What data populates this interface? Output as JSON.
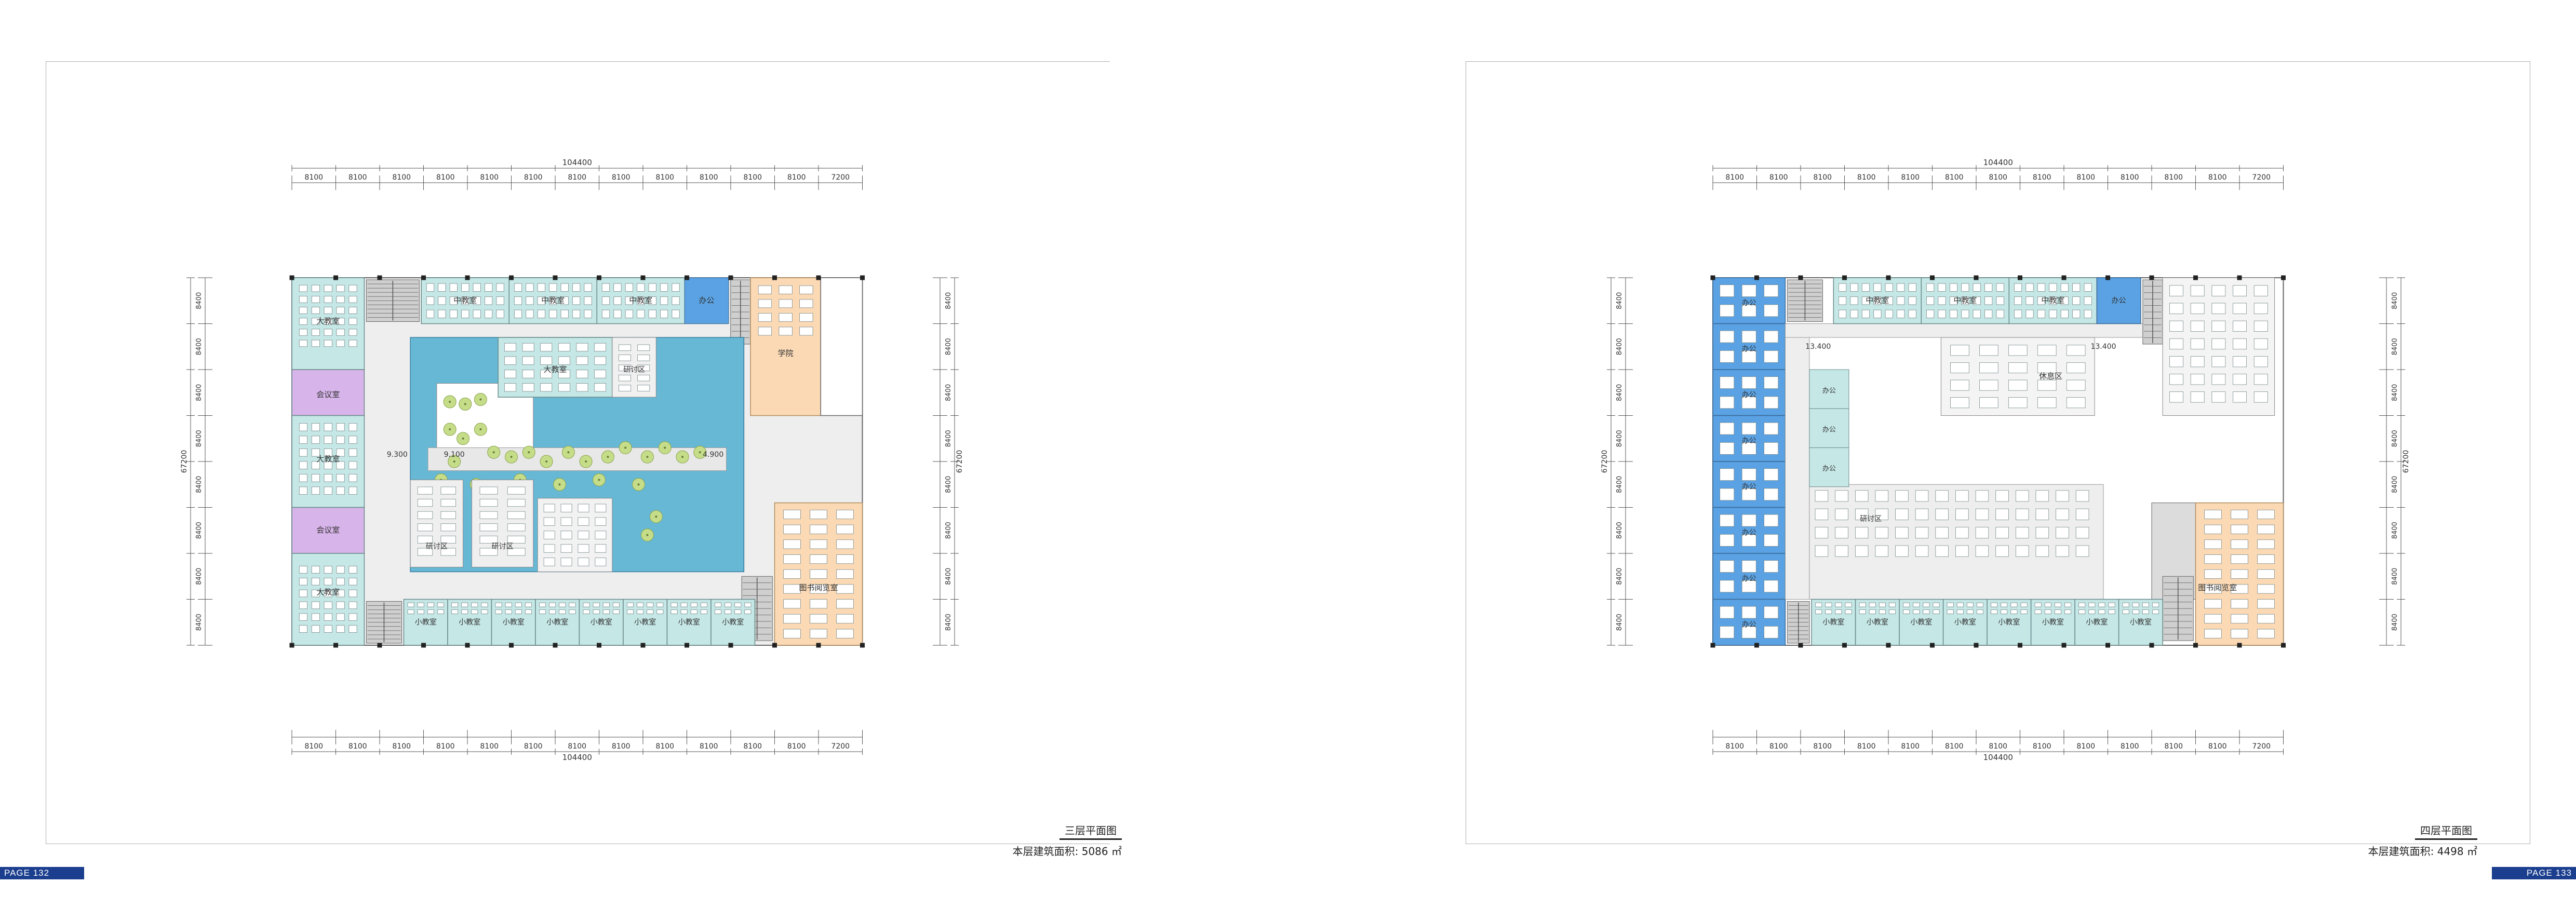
{
  "pages": {
    "left_number": "PAGE  132",
    "right_number": "PAGE  133"
  },
  "colors": {
    "classroom": "#c5e7e6",
    "office": "#5aa2e3",
    "meeting": "#d7b4ea",
    "library": "#fbd9b5",
    "atrium": "#66b8d5",
    "circulation": "#eeeeee",
    "core": "#9d9d9d",
    "tree": "#c5dd88",
    "badge": "#1b3e8f"
  },
  "plan3": {
    "title": "三层平面图",
    "area_label": "本层建筑面积:",
    "area_value": "5086 ㎡",
    "overall_dim": "104400",
    "vertical_overall": "67200",
    "top_dims": [
      "8100",
      "8100",
      "8100",
      "8100",
      "8100",
      "8100",
      "8100",
      "8100",
      "8100",
      "8100",
      "8100",
      "8100",
      "7200"
    ],
    "bottom_dims": [
      "8100",
      "8100",
      "8100",
      "8100",
      "8100",
      "8100",
      "8100",
      "8100",
      "8100",
      "8100",
      "8100",
      "8100",
      "7200"
    ],
    "side_dims": [
      "8400",
      "8400",
      "8400",
      "8400",
      "8400",
      "8400",
      "8400",
      "8400"
    ],
    "rooms": {
      "big_classroom": "大教室",
      "middle_classroom": "中教室",
      "small_classroom": "小教室",
      "office": "办公",
      "meeting": "会议室",
      "discussion": "研讨区",
      "study_hall": "学院",
      "library_reading": "图书阅览室"
    },
    "elevations": [
      "9.300",
      "9.100",
      "4.900"
    ]
  },
  "plan4": {
    "title": "四层平面图",
    "area_label": "本层建筑面积:",
    "area_value": "4498 ㎡",
    "overall_dim": "104400",
    "vertical_overall": "67200",
    "top_dims": [
      "8100",
      "8100",
      "8100",
      "8100",
      "8100",
      "8100",
      "8100",
      "8100",
      "8100",
      "8100",
      "8100",
      "8100",
      "7200"
    ],
    "bottom_dims": [
      "8100",
      "8100",
      "8100",
      "8100",
      "8100",
      "8100",
      "8100",
      "8100",
      "8100",
      "8100",
      "8100",
      "8100",
      "7200"
    ],
    "side_dims": [
      "8400",
      "8400",
      "8400",
      "8400",
      "8400",
      "8400",
      "8400",
      "8400"
    ],
    "rooms": {
      "office": "办公",
      "middle_classroom": "中教室",
      "small_classroom": "小教室",
      "discussion": "研讨区",
      "rest": "休息区",
      "library_reading": "图书阅览室"
    },
    "elevations": [
      "13.400",
      "13.400"
    ]
  }
}
